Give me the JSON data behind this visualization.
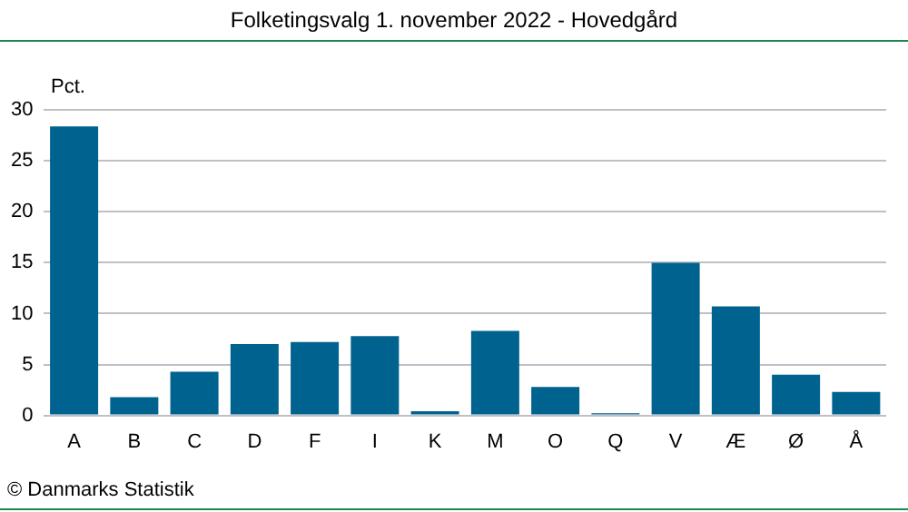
{
  "chart_data": {
    "type": "bar",
    "title": "Folketingsvalg 1. november 2022 - Hovedgård",
    "ylabel": "Pct.",
    "categories": [
      "A",
      "B",
      "C",
      "D",
      "F",
      "I",
      "K",
      "M",
      "O",
      "Q",
      "V",
      "Æ",
      "Ø",
      "Å"
    ],
    "values": [
      28.4,
      1.8,
      4.3,
      7.0,
      7.2,
      7.8,
      0.4,
      8.3,
      2.8,
      0.2,
      15.0,
      10.7,
      4.0,
      2.3
    ],
    "color": "#00628f",
    "ylim": [
      0,
      30
    ],
    "yticks": [
      0,
      5,
      10,
      15,
      20,
      25,
      30
    ],
    "grid": "y",
    "legend": false,
    "annotations": [
      "© Danmarks Statistik"
    ]
  }
}
